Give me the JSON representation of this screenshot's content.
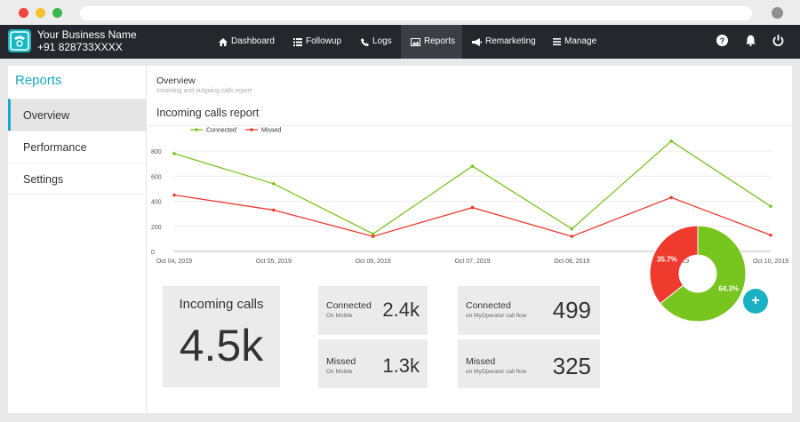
{
  "browser": {
    "window_controls": [
      "close",
      "minimize",
      "maximize"
    ]
  },
  "header": {
    "business_name": "Your Business Name",
    "phone": "+91 828733XXXX",
    "nav": [
      {
        "label": "Dashboard",
        "icon": "home-icon",
        "active": false
      },
      {
        "label": "Followup",
        "icon": "list-icon",
        "active": false
      },
      {
        "label": "Logs",
        "icon": "phone-icon",
        "active": false
      },
      {
        "label": "Reports",
        "icon": "chart-image-icon",
        "active": true
      },
      {
        "label": "Remarketing",
        "icon": "megaphone-icon",
        "active": false
      },
      {
        "label": "Manage",
        "icon": "menu-icon",
        "active": false
      }
    ],
    "right_icons": [
      "help-icon",
      "bell-icon",
      "power-icon"
    ]
  },
  "sidebar": {
    "title": "Reports",
    "items": [
      {
        "label": "Overview",
        "active": true
      },
      {
        "label": "Performance",
        "active": false
      },
      {
        "label": "Settings",
        "active": false
      }
    ]
  },
  "main": {
    "title": "Overview",
    "subtitle": "Incoming and outgoing calls report",
    "report_title": "Incoming calls report"
  },
  "chart_data": {
    "type": "line",
    "x": [
      "Oct 04, 2019",
      "Oct 05, 2019",
      "Oct 06, 2019",
      "Oct 07, 2019",
      "Oct 08, 2019",
      "Oct 09, 2019",
      "Oct 10, 2019"
    ],
    "yticks": [
      0,
      200,
      400,
      600,
      800
    ],
    "ylim": [
      0,
      900
    ],
    "legend": "top-left",
    "grid": true,
    "series": [
      {
        "name": "Connected",
        "color": "#77c51f",
        "values": [
          780,
          540,
          140,
          680,
          180,
          880,
          360
        ]
      },
      {
        "name": "Missed",
        "color": "#ef3a2e",
        "values": [
          450,
          330,
          120,
          350,
          120,
          430,
          130
        ]
      }
    ]
  },
  "stats": {
    "incoming": {
      "label": "Incoming calls",
      "value": "4.5k"
    },
    "connected_mobile": {
      "label": "Connected",
      "sub": "On Mobile",
      "value": "2.4k"
    },
    "missed_mobile": {
      "label": "Missed",
      "sub": "On Mobile",
      "value": "1.3k"
    },
    "connected_flow": {
      "label": "Connected",
      "sub": "on MyOperator call flow",
      "value": "499"
    },
    "missed_flow": {
      "label": "Missed",
      "sub": "on MyOperator call flow",
      "value": "325"
    }
  },
  "donut": {
    "slices": [
      {
        "label": "64.3%",
        "value": 64.3,
        "color": "#77c51f"
      },
      {
        "label": "35.7%",
        "value": 35.7,
        "color": "#ef3a2e"
      }
    ]
  },
  "fab": {
    "label": "+"
  }
}
